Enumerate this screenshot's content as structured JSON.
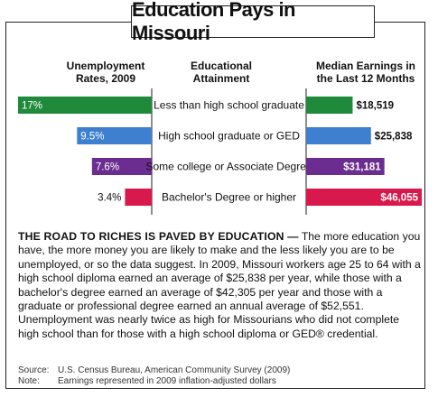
{
  "title": "Education Pays in Missouri",
  "headers": {
    "unemployment": [
      "Unemployment",
      "Rates, 2009"
    ],
    "attainment": [
      "Educational",
      "Attainment"
    ],
    "earnings": [
      "Median Earnings in",
      "the Last 12 Months"
    ]
  },
  "chart_data": {
    "type": "bar",
    "categories": [
      "Less than high school graduate",
      "High school graduate or GED",
      "Some college or Associate Degree",
      "Bachelor's Degree or higher"
    ],
    "series": [
      {
        "name": "Unemployment Rates, 2009",
        "values": [
          17,
          9.5,
          7.6,
          3.4
        ],
        "labels": [
          "17%",
          "9.5%",
          "7.6%",
          "3.4%"
        ],
        "unit": "%"
      },
      {
        "name": "Median Earnings in the Last 12 Months",
        "values": [
          18519,
          25838,
          31181,
          46055
        ],
        "labels": [
          "$18,519",
          "$25,838",
          "$31,181",
          "$46,055"
        ],
        "unit": "$"
      }
    ],
    "colors": [
      "#1f8a3b",
      "#3f7fd0",
      "#6b2d8f",
      "#d9194b"
    ]
  },
  "paragraph": {
    "lead": "THE ROAD TO RICHES IS PAVED BY EDUCATION —",
    "body": "The more education you have, the more money you are likely to make and the less likely you are to be unemployed, or so the data suggest. In 2009, Missouri workers age 25 to 64 with a high school diploma earned an average of $25,838 per year, while those with a bachelor's degree earned an average of $42,305 per year and those with a graduate or professional degree earned an annual average of $52,551. Unemployment was nearly twice as high for Missourians who did not complete high school than for those with a high school diploma or GED® credential."
  },
  "source": {
    "label": "Source:",
    "text": "U.S. Census Bureau, American Community Survey (2009)"
  },
  "note": {
    "label": "Note:",
    "text": "Earnings represented in 2009 inflation-adjusted dollars"
  }
}
